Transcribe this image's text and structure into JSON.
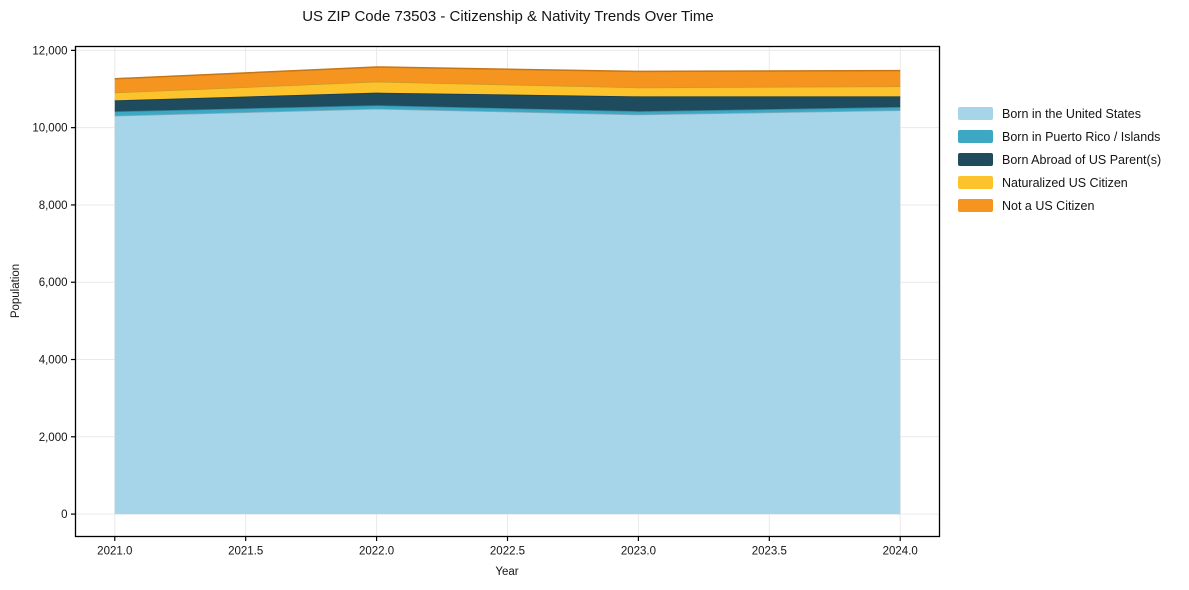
{
  "chart_data": {
    "type": "area",
    "stacked": true,
    "title": "US ZIP Code 73503 - Citizenship & Nativity Trends Over Time",
    "xlabel": "Year",
    "ylabel": "Population",
    "x": [
      2021,
      2022,
      2023,
      2024
    ],
    "series": [
      {
        "name": "Born in the United States",
        "color": "#a6d4e8",
        "values": [
          10310,
          10490,
          10340,
          10450
        ]
      },
      {
        "name": "Born in Puerto Rico / Islands",
        "color": "#3da8c4",
        "values": [
          110,
          90,
          85,
          85
        ]
      },
      {
        "name": "Born Abroad of US Parent(s)",
        "color": "#1f4b5e",
        "values": [
          285,
          325,
          385,
          275
        ]
      },
      {
        "name": "Naturalized US Citizen",
        "color": "#fcc32d",
        "values": [
          205,
          285,
          230,
          260
        ]
      },
      {
        "name": "Not a US Citizen",
        "color": "#f5941f",
        "values": [
          355,
          380,
          415,
          405
        ]
      }
    ],
    "totals": [
      11265,
      11570,
      11455,
      11475
    ],
    "xticks": [
      2021.0,
      2021.5,
      2022.0,
      2022.5,
      2023.0,
      2023.5,
      2024.0
    ],
    "xtick_labels": [
      "2021.0",
      "2021.5",
      "2022.0",
      "2022.5",
      "2023.0",
      "2023.5",
      "2024.0"
    ],
    "yticks": [
      0,
      2000,
      4000,
      6000,
      8000,
      10000,
      12000
    ],
    "ytick_labels": [
      "0",
      "2,000",
      "4,000",
      "6,000",
      "8,000",
      "10,000",
      "12,000"
    ],
    "xlim": [
      2020.85,
      2024.15
    ],
    "ylim": [
      -580,
      12100
    ],
    "grid": true,
    "legend_position": "right",
    "grid_color": "#e9e9e9",
    "spine_color": "#000000",
    "text_color": "#141414"
  }
}
